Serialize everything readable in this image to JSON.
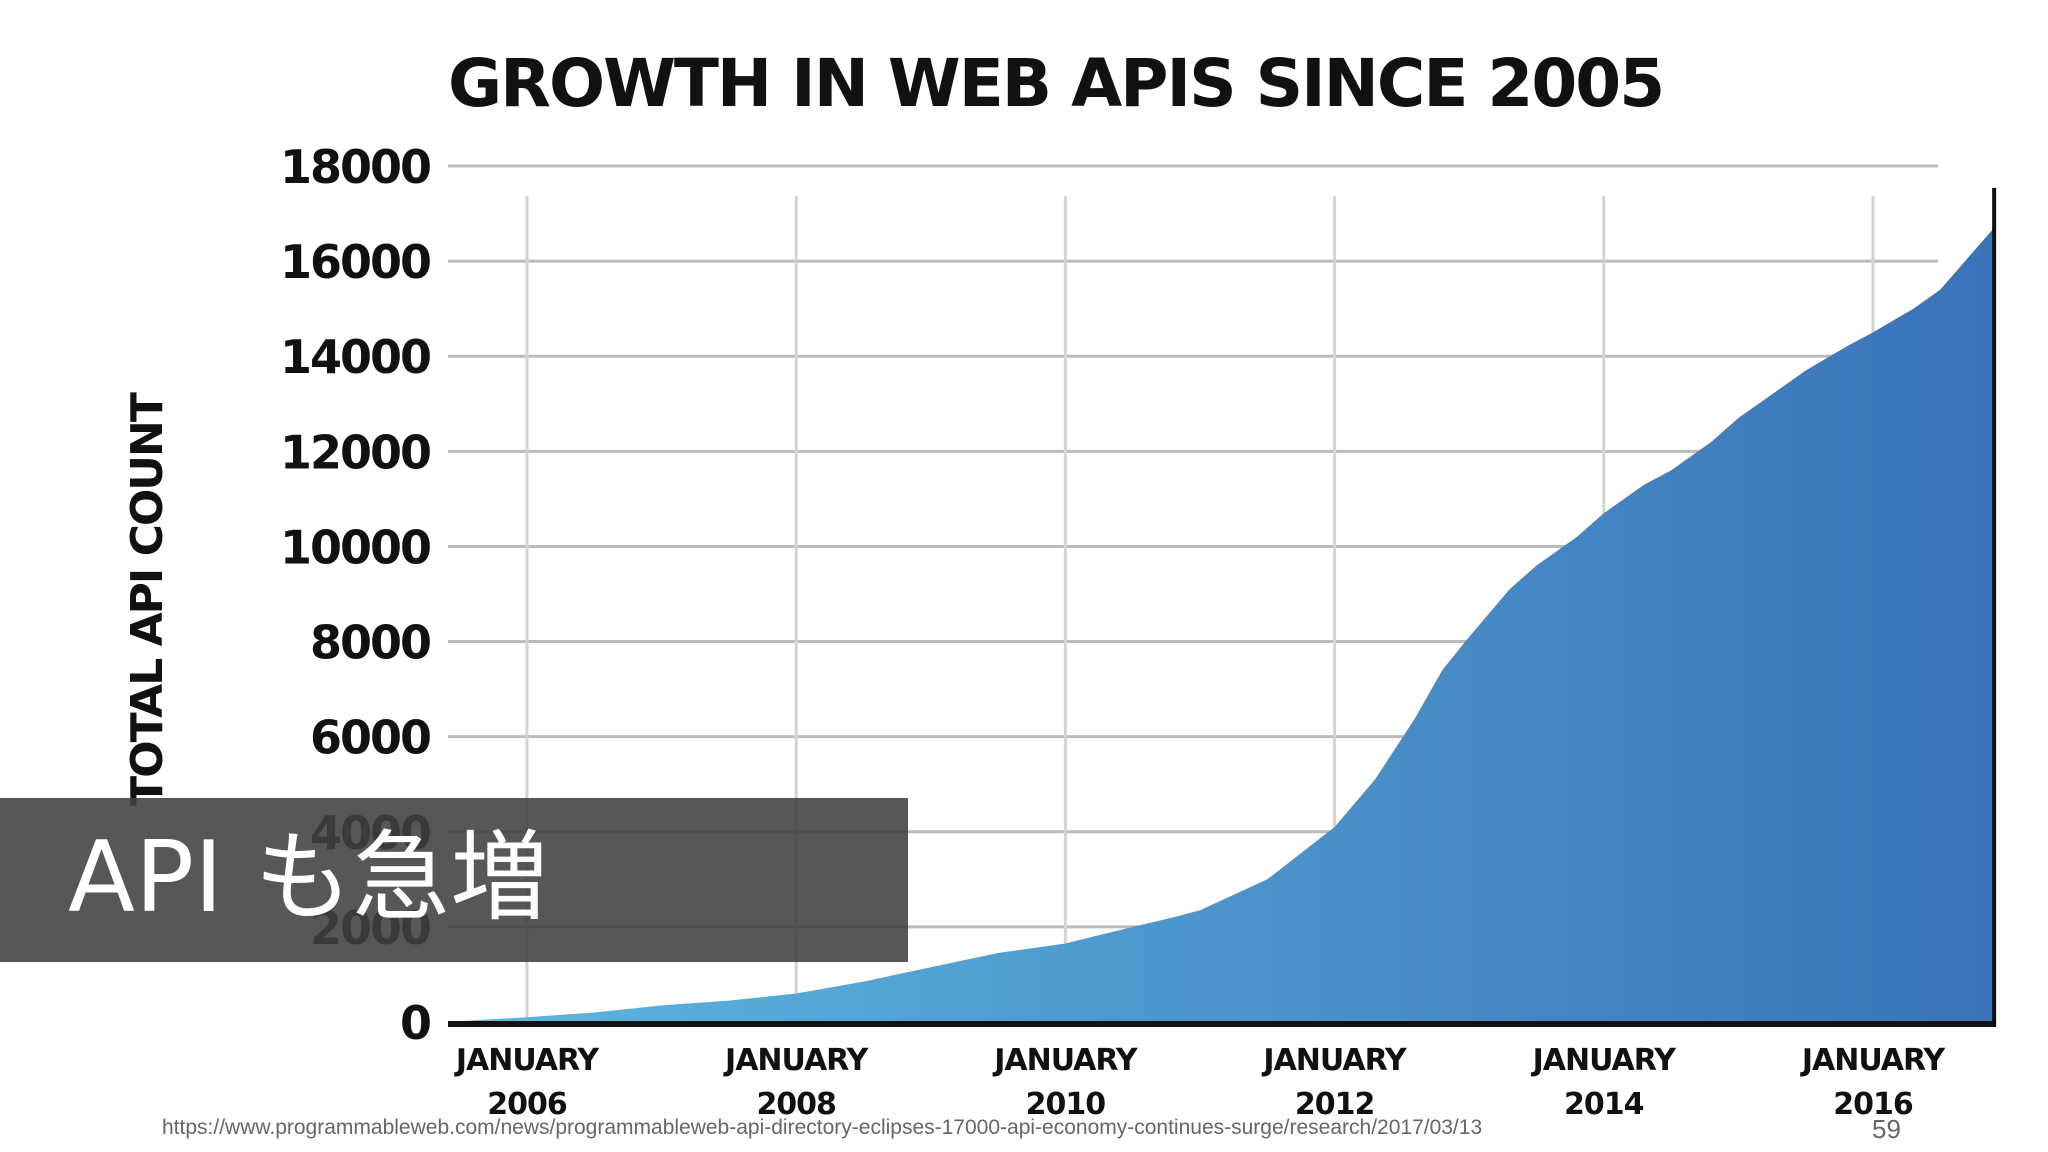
{
  "chart_data": {
    "type": "area",
    "title": "GROWTH IN WEB APIS SINCE 2005",
    "ylabel": "TOTAL API COUNT",
    "xlabel": "",
    "ylim": [
      0,
      18000
    ],
    "yticks": [
      0,
      2000,
      4000,
      6000,
      8000,
      10000,
      12000,
      14000,
      16000,
      18000
    ],
    "xticks": [
      {
        "year": 2006,
        "month": "JANUARY",
        "year_label": "2006"
      },
      {
        "year": 2008,
        "month": "JANUARY",
        "year_label": "2008"
      },
      {
        "year": 2010,
        "month": "JANUARY",
        "year_label": "2010"
      },
      {
        "year": 2012,
        "month": "JANUARY",
        "year_label": "2012"
      },
      {
        "year": 2014,
        "month": "JANUARY",
        "year_label": "2014"
      },
      {
        "year": 2016,
        "month": "JANUARY",
        "year_label": "2016"
      }
    ],
    "xlim": [
      2005.4,
      2016.9
    ],
    "grid": true,
    "x": [
      2005.4,
      2006.0,
      2006.5,
      2007.0,
      2007.5,
      2008.0,
      2008.5,
      2009.0,
      2009.5,
      2010.0,
      2010.5,
      2010.8,
      2011.0,
      2011.5,
      2012.0,
      2012.3,
      2012.6,
      2012.8,
      2013.0,
      2013.3,
      2013.5,
      2013.8,
      2014.0,
      2014.3,
      2014.5,
      2014.8,
      2015.0,
      2015.3,
      2015.5,
      2015.8,
      2016.0,
      2016.3,
      2016.5,
      2016.9
    ],
    "y": [
      0,
      100,
      200,
      350,
      450,
      600,
      850,
      1150,
      1450,
      1650,
      2000,
      2200,
      2350,
      3000,
      4100,
      5100,
      6400,
      7400,
      8100,
      9100,
      9600,
      10200,
      10700,
      11300,
      11600,
      12200,
      12700,
      13300,
      13700,
      14200,
      14500,
      15000,
      15400,
      16700
    ],
    "colors": {
      "area_left": "#5cb8e0",
      "area_right": "#3a72b8",
      "grid": "#bbbbbb",
      "axis": "#111111"
    }
  },
  "overlay": {
    "text": "API も急増",
    "background": "#404040"
  },
  "footer": {
    "source": "https://www.programmableweb.com/news/programmableweb-api-directory-eclipses-17000-api-economy-continues-surge/research/2017/03/13",
    "page_number": "59"
  }
}
